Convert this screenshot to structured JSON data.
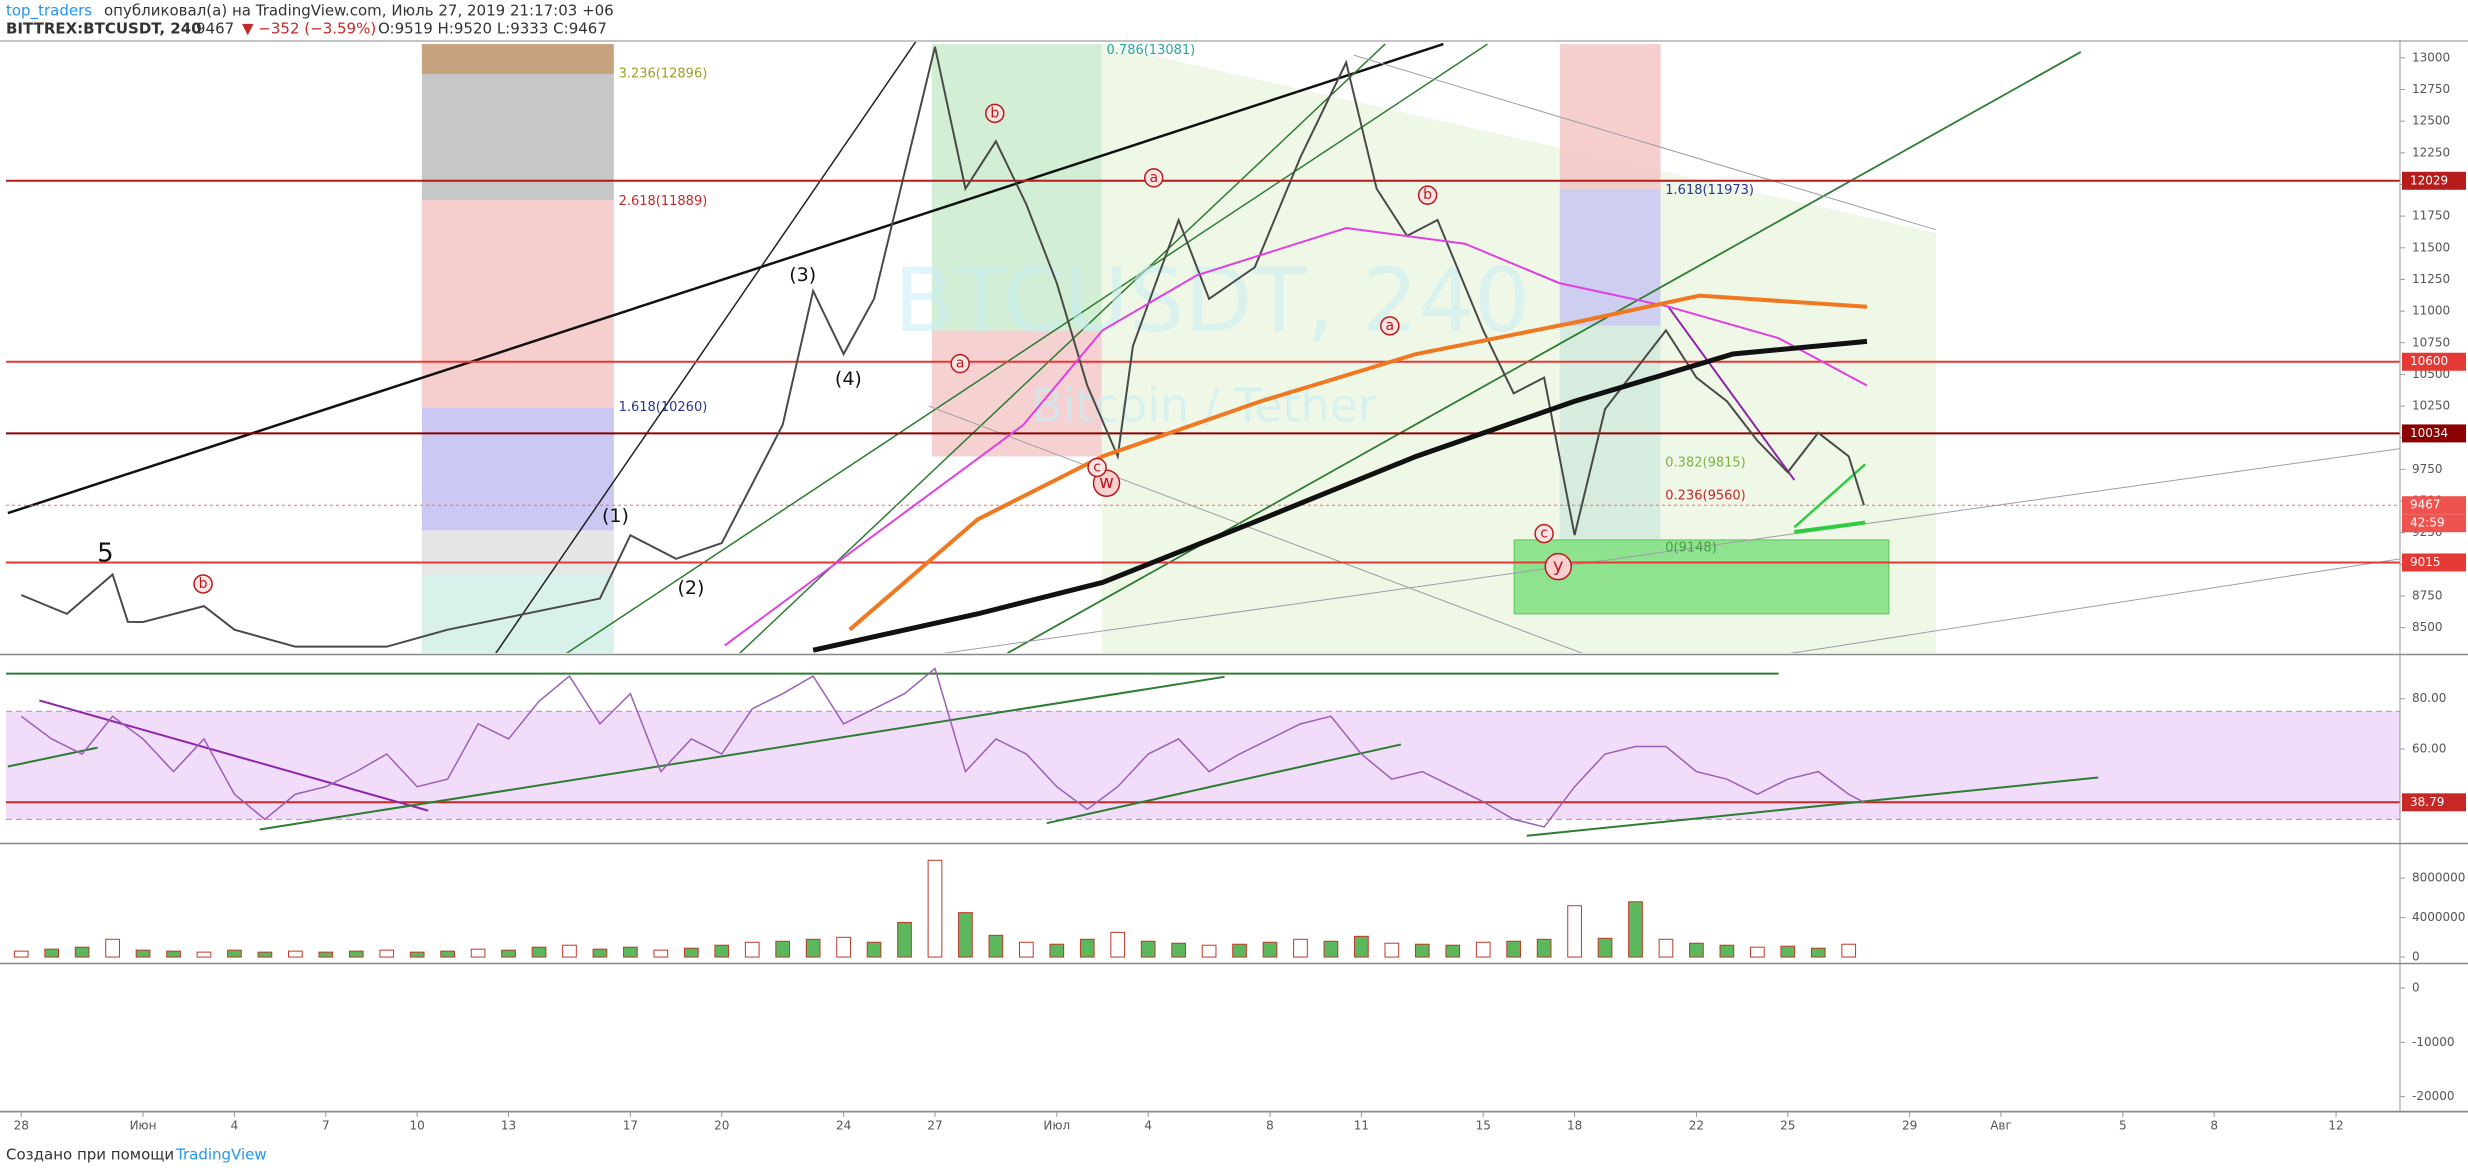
{
  "header": {
    "user": "top_traders",
    "published": "опубликовал(а) на TradingView.com, Июль 27, 2019 21:17:03 +06",
    "symbol": "BITTREX:BTCUSDT, 240",
    "price": "9467",
    "change": "▼ −352 (−3.59%)",
    "ohlc": "O:9519 H:9520 L:9333 C:9467"
  },
  "footer": {
    "text": "Создано при помощи",
    "brand": "TradingView"
  },
  "watermark": {
    "symbol": "BTCUSDT, 240",
    "name": "Bitcoin / Tether"
  },
  "annotations": [
    "3.236(12896)",
    "2.618(11889)",
    "1.618(10260)",
    "0.786(13081)",
    "1.618(11973)",
    "0.382(9815)",
    "0.236(9560)",
    "0(9148)",
    "(1)",
    "(2)",
    "(3)",
    "(4)",
    "5",
    "w",
    "y",
    "b",
    "b",
    "b",
    "a",
    "a",
    "a",
    "c",
    "c"
  ],
  "chart_data": [
    {
      "type": "line",
      "xlim": [
        -0.5,
        78.1
      ],
      "ylim": [
        8300,
        13125
      ],
      "xticks": [
        {
          "value": 0,
          "label": "28"
        },
        {
          "value": 4,
          "label": "Июн"
        },
        {
          "value": 7,
          "label": "4"
        },
        {
          "value": 10,
          "label": "7"
        },
        {
          "value": 13,
          "label": "10"
        },
        {
          "value": 16,
          "label": "13"
        },
        {
          "value": 20,
          "label": "17"
        },
        {
          "value": 23,
          "label": "20"
        },
        {
          "value": 27,
          "label": "24"
        },
        {
          "value": 30,
          "label": "27"
        },
        {
          "value": 34,
          "label": "Июл"
        },
        {
          "value": 37,
          "label": "4"
        },
        {
          "value": 41,
          "label": "8"
        },
        {
          "value": 44,
          "label": "11"
        },
        {
          "value": 48,
          "label": "15"
        },
        {
          "value": 51,
          "label": "18"
        },
        {
          "value": 55,
          "label": "22"
        },
        {
          "value": 58,
          "label": "25"
        },
        {
          "value": 62,
          "label": "29"
        },
        {
          "value": 65,
          "label": "Авг"
        },
        {
          "value": 69,
          "label": "5"
        },
        {
          "value": 72,
          "label": "8"
        },
        {
          "value": 76,
          "label": "12"
        }
      ],
      "yticks": [
        8500,
        8750,
        9000,
        9250,
        9500,
        9750,
        10000,
        10250,
        10500,
        10750,
        11000,
        11250,
        11500,
        11750,
        12000,
        12250,
        12500,
        12750,
        13000
      ],
      "series": [
        {
          "color": "#4a4a4a",
          "width": 2,
          "x": [
            0,
            1.5,
            3,
            3.5,
            4,
            6,
            7,
            9,
            12,
            14,
            19,
            20,
            21.5,
            23,
            25,
            26,
            27,
            28,
            29,
            30,
            31,
            32,
            33,
            34,
            35,
            36,
            36.5,
            38,
            39,
            40.5,
            42,
            43.5,
            44.5,
            45.5,
            46.5,
            48,
            49,
            50,
            51,
            52,
            53,
            54,
            55,
            56,
            57,
            58,
            59,
            60,
            60.5
          ],
          "values": [
            8758,
            8609,
            8920,
            8546,
            8545,
            8670,
            8484,
            8350,
            8350,
            8484,
            8730,
            9230,
            9044,
            9168,
            10101,
            11159,
            10661,
            11097,
            12092,
            13087,
            11967,
            12341,
            11843,
            11221,
            10412,
            9853,
            10724,
            11719,
            11097,
            11346,
            12216,
            12963,
            11967,
            11594,
            11719,
            10848,
            10350,
            10475,
            9231,
            10226,
            10537,
            10848,
            10475,
            10288,
            9977,
            9728,
            10039,
            9853,
            9467
          ]
        },
        {
          "color": "#e040e0",
          "width": 2,
          "x": [
            23.1,
            32.9,
            35.5,
            38.6,
            43.5,
            47.4,
            50.5,
            54.1,
            57.7,
            60.6
          ],
          "values": [
            8360,
            10101,
            10848,
            11283,
            11656,
            11532,
            11221,
            11034,
            10786,
            10412
          ]
        },
        {
          "color": "#f07820",
          "width": 4,
          "x": [
            27.2,
            31.4,
            35.5,
            40.7,
            45.8,
            51.0,
            55.1,
            60.6
          ],
          "values": [
            8484,
            9355,
            9853,
            10288,
            10661,
            10910,
            11122,
            11034
          ]
        },
        {
          "color": "#111111",
          "width": 5,
          "x": [
            26.0,
            31.4,
            35.5,
            40.7,
            45.8,
            51.0,
            56.2,
            60.6
          ],
          "values": [
            8322,
            8609,
            8857,
            9355,
            9853,
            10288,
            10661,
            10761
          ]
        }
      ],
      "hlines": [
        {
          "value": 12029,
          "color": "#b71c1c"
        },
        {
          "value": 10600,
          "color": "#e53935"
        },
        {
          "value": 10034,
          "color": "#8b0000"
        },
        {
          "value": 9015,
          "color": "#e53935"
        },
        {
          "value": 9467,
          "color": "#e57373"
        }
      ],
      "price_labels": [
        {
          "value": 12029,
          "color": "#b71c1c"
        },
        {
          "value": 10600,
          "color": "#e53935"
        },
        {
          "value": 10034,
          "color": "#8b0000"
        },
        {
          "value": 9467,
          "color": "#ef5350"
        },
        {
          "value": 9015,
          "color": "#e53935"
        }
      ],
      "countdown": "42:59"
    },
    {
      "type": "line",
      "ylim": [
        23,
        97
      ],
      "yticks": [
        {
          "value": 80,
          "label": "80.00"
        },
        {
          "value": 60,
          "label": "60.00"
        }
      ],
      "band": [
        32,
        75
      ],
      "band_color": "#f1dcfa",
      "last": {
        "value": 38.79,
        "color": "#c62828"
      },
      "series": [
        {
          "color": "#9c5fb5",
          "width": 1.5,
          "x": [
            0,
            1,
            2,
            3,
            4,
            5,
            6,
            7,
            8,
            9,
            10,
            11,
            12,
            13,
            14,
            15,
            16,
            17,
            18,
            19,
            20,
            21,
            22,
            23,
            24,
            25,
            26,
            27,
            28,
            29,
            30,
            31,
            32,
            33,
            34,
            35,
            36,
            37,
            38,
            39,
            40,
            41,
            42,
            43,
            44,
            45,
            46,
            47,
            48,
            49,
            50,
            51,
            52,
            53,
            54,
            55,
            56,
            57,
            58,
            59,
            60,
            60.5
          ],
          "values": [
            73,
            64,
            58,
            73,
            64,
            51,
            64,
            42,
            32,
            42,
            45,
            51,
            58,
            45,
            48,
            70,
            64,
            79,
            89,
            70,
            82,
            51,
            64,
            58,
            76,
            82,
            89,
            70,
            76,
            82,
            92,
            51,
            64,
            58,
            45,
            36,
            45,
            58,
            64,
            51,
            58,
            64,
            70,
            73,
            58,
            48,
            51,
            45,
            39,
            32,
            29,
            45,
            58,
            61,
            61,
            51,
            48,
            42,
            48,
            51,
            42,
            38.79
          ]
        }
      ]
    },
    {
      "type": "bar",
      "ylim": [
        -500000,
        11350000
      ],
      "yticks": [
        0,
        4000000,
        8000000
      ],
      "series": [
        {
          "color": "#5cb85c",
          "edge": "#c0392b",
          "x": [
            0,
            1,
            2,
            3,
            4,
            5,
            6,
            7,
            8,
            9,
            10,
            11,
            12,
            13,
            14,
            15,
            16,
            17,
            18,
            19,
            20,
            21,
            22,
            23,
            24,
            25,
            26,
            27,
            28,
            29,
            30,
            31,
            32,
            33,
            34,
            35,
            36,
            37,
            38,
            39,
            40,
            41,
            42,
            43,
            44,
            45,
            46,
            47,
            48,
            49,
            50,
            51,
            52,
            53,
            54,
            55,
            56,
            57,
            58,
            59,
            60
          ],
          "values": [
            600000,
            800000,
            1000000,
            1800000,
            700000,
            600000,
            500000,
            700000,
            500000,
            600000,
            500000,
            600000,
            700000,
            500000,
            600000,
            800000,
            700000,
            1000000,
            1200000,
            800000,
            1000000,
            700000,
            900000,
            1200000,
            1500000,
            1600000,
            1800000,
            2000000,
            1500000,
            3500000,
            9800000,
            4500000,
            2200000,
            1500000,
            1300000,
            1800000,
            2500000,
            1600000,
            1400000,
            1200000,
            1300000,
            1500000,
            1800000,
            1600000,
            2100000,
            1400000,
            1300000,
            1200000,
            1500000,
            1600000,
            1800000,
            5200000,
            1900000,
            5600000,
            1800000,
            1400000,
            1200000,
            1000000,
            1100000,
            900000,
            1300000
          ]
        }
      ]
    },
    {
      "type": "line",
      "ylim": [
        -22470,
        4236
      ],
      "yticks": [
        0,
        -10000,
        -20000
      ],
      "series": []
    }
  ]
}
